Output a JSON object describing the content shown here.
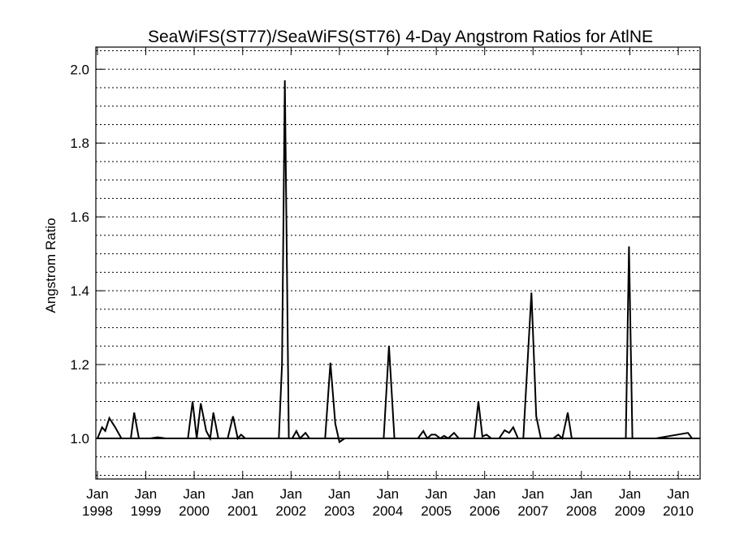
{
  "chart_data": {
    "type": "line",
    "title": "SeaWiFS(ST77)/SeaWiFS(ST76) 4-Day Angstrom Ratios for AtlNE",
    "ylabel": "Angstrom Ratio",
    "xlabel": "",
    "xlim": [
      "1997-12-20",
      "2010-06-15"
    ],
    "ylim": [
      0.89,
      2.06
    ],
    "reference_line": 1.0,
    "grid": true,
    "y_ticks": [
      {
        "value": 1.0,
        "label": "1.0"
      },
      {
        "value": 1.2,
        "label": "1.2"
      },
      {
        "value": 1.4,
        "label": "1.4"
      },
      {
        "value": 1.6,
        "label": "1.6"
      },
      {
        "value": 1.8,
        "label": "1.8"
      },
      {
        "value": 2.0,
        "label": "2.0"
      }
    ],
    "x_ticks": [
      {
        "date": "1998-01-01",
        "month": "Jan",
        "year": "1998"
      },
      {
        "date": "1999-01-01",
        "month": "Jan",
        "year": "1999"
      },
      {
        "date": "2000-01-01",
        "month": "Jan",
        "year": "2000"
      },
      {
        "date": "2001-01-01",
        "month": "Jan",
        "year": "2001"
      },
      {
        "date": "2002-01-01",
        "month": "Jan",
        "year": "2002"
      },
      {
        "date": "2003-01-01",
        "month": "Jan",
        "year": "2003"
      },
      {
        "date": "2004-01-01",
        "month": "Jan",
        "year": "2004"
      },
      {
        "date": "2005-01-01",
        "month": "Jan",
        "year": "2005"
      },
      {
        "date": "2006-01-01",
        "month": "Jan",
        "year": "2006"
      },
      {
        "date": "2007-01-01",
        "month": "Jan",
        "year": "2007"
      },
      {
        "date": "2008-01-01",
        "month": "Jan",
        "year": "2008"
      },
      {
        "date": "2009-01-01",
        "month": "Jan",
        "year": "2009"
      },
      {
        "date": "2010-01-01",
        "month": "Jan",
        "year": "2010"
      }
    ],
    "series": [
      {
        "color": "#000000",
        "points": [
          [
            "1998-01-01",
            1.0
          ],
          [
            "1998-02-05",
            1.03
          ],
          [
            "1998-03-01",
            1.02
          ],
          [
            "1998-04-01",
            1.055
          ],
          [
            "1998-05-15",
            1.03
          ],
          [
            "1998-07-01",
            1.0
          ],
          [
            "1998-08-01",
            1.0
          ],
          [
            "1998-09-10",
            1.0
          ],
          [
            "1998-10-05",
            1.07
          ],
          [
            "1998-11-10",
            1.0
          ],
          [
            "1998-12-15",
            1.0
          ],
          [
            "1999-02-01",
            1.0
          ],
          [
            "1999-04-01",
            1.003
          ],
          [
            "1999-06-01",
            1.0
          ],
          [
            "1999-09-01",
            1.0
          ],
          [
            "1999-11-15",
            1.0
          ],
          [
            "1999-12-20",
            1.1
          ],
          [
            "2000-01-20",
            1.0
          ],
          [
            "2000-02-20",
            1.095
          ],
          [
            "2000-04-01",
            1.02
          ],
          [
            "2000-05-01",
            1.0
          ],
          [
            "2000-05-25",
            1.07
          ],
          [
            "2000-07-01",
            1.0
          ],
          [
            "2000-08-01",
            1.0
          ],
          [
            "2000-09-10",
            1.0
          ],
          [
            "2000-10-20",
            1.06
          ],
          [
            "2000-11-25",
            1.0
          ],
          [
            "2000-12-20",
            1.01
          ],
          [
            "2001-01-20",
            1.0
          ],
          [
            "2001-06-01",
            1.0
          ],
          [
            "2001-09-01",
            1.0
          ],
          [
            "2001-10-01",
            1.0
          ],
          [
            "2001-10-25",
            1.2
          ],
          [
            "2001-11-15",
            1.97
          ],
          [
            "2001-12-15",
            1.0
          ],
          [
            "2002-01-10",
            1.0
          ],
          [
            "2002-02-10",
            1.02
          ],
          [
            "2002-03-10",
            1.0
          ],
          [
            "2002-04-20",
            1.015
          ],
          [
            "2002-05-20",
            1.0
          ],
          [
            "2002-09-15",
            1.0
          ],
          [
            "2002-10-25",
            1.205
          ],
          [
            "2002-12-01",
            1.04
          ],
          [
            "2003-01-01",
            0.99
          ],
          [
            "2003-02-10",
            1.0
          ],
          [
            "2003-12-01",
            1.0
          ],
          [
            "2004-01-10",
            1.25
          ],
          [
            "2004-02-20",
            1.0
          ],
          [
            "2004-03-20",
            1.0
          ],
          [
            "2004-08-15",
            1.0
          ],
          [
            "2004-09-25",
            1.02
          ],
          [
            "2004-10-25",
            1.0
          ],
          [
            "2004-11-25",
            1.01
          ],
          [
            "2004-12-25",
            1.01
          ],
          [
            "2005-02-01",
            1.0
          ],
          [
            "2005-03-01",
            1.007
          ],
          [
            "2005-04-01",
            1.0
          ],
          [
            "2005-05-15",
            1.015
          ],
          [
            "2005-06-20",
            1.0
          ],
          [
            "2005-10-15",
            1.0
          ],
          [
            "2005-11-15",
            1.1
          ],
          [
            "2005-12-15",
            1.005
          ],
          [
            "2006-01-15",
            1.01
          ],
          [
            "2006-02-20",
            1.0
          ],
          [
            "2006-04-20",
            1.0
          ],
          [
            "2006-06-01",
            1.022
          ],
          [
            "2006-07-05",
            1.015
          ],
          [
            "2006-08-05",
            1.03
          ],
          [
            "2006-09-10",
            1.0
          ],
          [
            "2006-10-20",
            1.0
          ],
          [
            "2006-12-20",
            1.395
          ],
          [
            "2007-01-25",
            1.06
          ],
          [
            "2007-03-01",
            1.0
          ],
          [
            "2007-06-01",
            1.0
          ],
          [
            "2007-07-10",
            1.01
          ],
          [
            "2007-08-10",
            1.0
          ],
          [
            "2007-09-20",
            1.07
          ],
          [
            "2007-10-20",
            1.0
          ],
          [
            "2008-04-01",
            1.0
          ],
          [
            "2008-10-01",
            1.0
          ],
          [
            "2008-12-01",
            1.0
          ],
          [
            "2008-12-25",
            1.52
          ],
          [
            "2009-01-20",
            1.0
          ],
          [
            "2009-03-20",
            1.0
          ],
          [
            "2009-07-15",
            1.0
          ],
          [
            "2010-03-15",
            1.015
          ],
          [
            "2010-04-15",
            1.0
          ]
        ]
      }
    ]
  }
}
